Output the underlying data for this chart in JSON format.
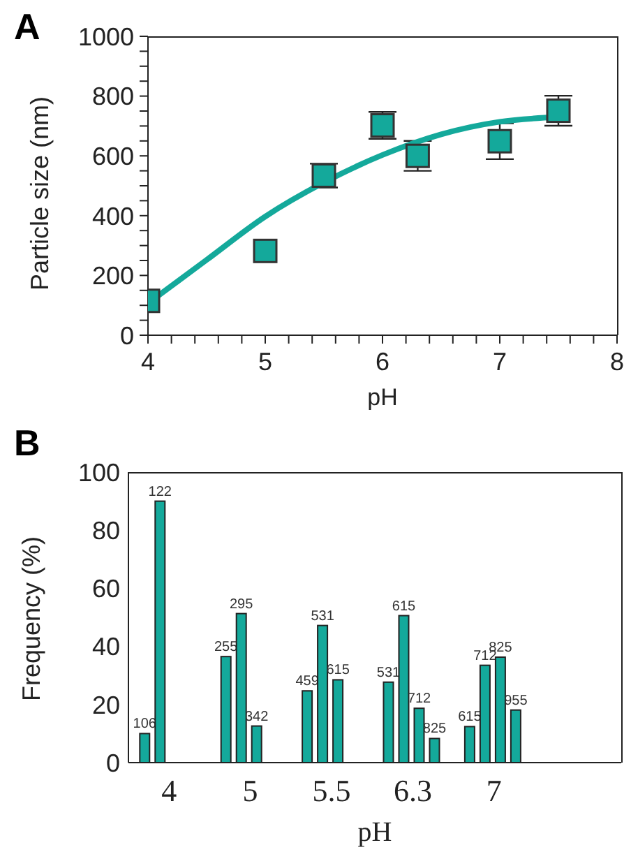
{
  "chart_data": [
    {
      "type": "scatter",
      "annotations": [
        "A"
      ],
      "xlabel": "pH",
      "ylabel": "Particle size (nm)",
      "x": [
        4,
        5,
        5.5,
        6,
        6.3,
        7,
        7.5
      ],
      "series": [
        {
          "type": "scatter",
          "color": "#14a99b",
          "marker": "square",
          "values": [
            115,
            282,
            534,
            702,
            600,
            649,
            751
          ],
          "errors": [
            null,
            null,
            40,
            45,
            50,
            60,
            50
          ]
        },
        {
          "type": "line",
          "color": "#14a99b",
          "x": [
            4,
            4.5,
            5,
            5.5,
            6,
            6.5,
            7,
            7.5
          ],
          "values": [
            107,
            252,
            397,
            511,
            603,
            672,
            714,
            730
          ]
        }
      ],
      "xlim": [
        4,
        8
      ],
      "ylim": [
        0,
        1000
      ],
      "xticks": [
        4,
        {
          "value": 4.2,
          "label": null
        },
        {
          "value": 4.4,
          "label": null
        },
        {
          "value": 4.6,
          "label": null
        },
        {
          "value": 4.8,
          "label": null
        },
        5,
        {
          "value": 5.2,
          "label": null
        },
        {
          "value": 5.4,
          "label": null
        },
        {
          "value": 5.6,
          "label": null
        },
        {
          "value": 5.8,
          "label": null
        },
        6,
        {
          "value": 6.2,
          "label": null
        },
        {
          "value": 6.4,
          "label": null
        },
        {
          "value": 6.6,
          "label": null
        },
        {
          "value": 6.8,
          "label": null
        },
        7,
        {
          "value": 7.2,
          "label": null
        },
        {
          "value": 7.4,
          "label": null
        },
        {
          "value": 7.6,
          "label": null
        },
        {
          "value": 7.8,
          "label": null
        },
        8
      ],
      "yticks": [
        0,
        {
          "value": 50,
          "label": null
        },
        {
          "value": 100,
          "label": null
        },
        {
          "value": 150,
          "label": null
        },
        200,
        {
          "value": 250,
          "label": null
        },
        {
          "value": 300,
          "label": null
        },
        {
          "value": 350,
          "label": null
        },
        400,
        {
          "value": 450,
          "label": null
        },
        {
          "value": 500,
          "label": null
        },
        {
          "value": 550,
          "label": null
        },
        600,
        {
          "value": 650,
          "label": null
        },
        {
          "value": 700,
          "label": null
        },
        {
          "value": 750,
          "label": null
        },
        800,
        {
          "value": 850,
          "label": null
        },
        {
          "value": 900,
          "label": null
        },
        {
          "value": 950,
          "label": null
        },
        1000
      ]
    },
    {
      "type": "bar",
      "xlabel": "pH",
      "ylabel": "Frequency (%)",
      "categories": [
        "4",
        "5",
        "5.5",
        "6.3",
        "7"
      ],
      "series": [
        {
          "color": "#14a99b",
          "values": [
            10,
            36.5,
            24.7,
            27.7,
            12.4
          ]
        },
        {
          "color": "#14a99b",
          "values": [
            90,
            51.3,
            47.2,
            50.6,
            33.5
          ]
        },
        {
          "color": "#14a99b",
          "values": [
            null,
            12.6,
            28.5,
            18.7,
            36.3
          ]
        },
        {
          "color": "#14a99b",
          "values": [
            null,
            null,
            null,
            8.3,
            18.1
          ]
        }
      ],
      "annotations": [
        "B",
        {
          "text": "106",
          "x": "4",
          "y": 10
        },
        {
          "text": "122",
          "x": "4",
          "y": 90
        },
        {
          "text": "255",
          "x": "5",
          "y": 36.5
        },
        {
          "text": "295",
          "x": "5",
          "y": 51.3
        },
        {
          "text": "342",
          "x": "5",
          "y": 12.6
        },
        {
          "text": "459",
          "x": "5.5",
          "y": 24.7
        },
        {
          "text": "531",
          "x": "5.5",
          "y": 47.2
        },
        {
          "text": "615",
          "x": "5.5",
          "y": 28.5
        },
        {
          "text": "531",
          "x": "6.3",
          "y": 27.7
        },
        {
          "text": "615",
          "x": "6.3",
          "y": 50.6
        },
        {
          "text": "712",
          "x": "6.3",
          "y": 18.7
        },
        {
          "text": "825",
          "x": "6.3",
          "y": 8.3
        },
        {
          "text": "615",
          "x": "7",
          "y": 12.4
        },
        {
          "text": "712",
          "x": "7",
          "y": 33.5
        },
        {
          "text": "825",
          "x": "7",
          "y": 36.3
        },
        {
          "text": "955",
          "x": "7",
          "y": 18.1
        }
      ],
      "ylim": [
        0,
        100
      ],
      "yticks": [
        0,
        20,
        40,
        60,
        80,
        100
      ]
    }
  ]
}
